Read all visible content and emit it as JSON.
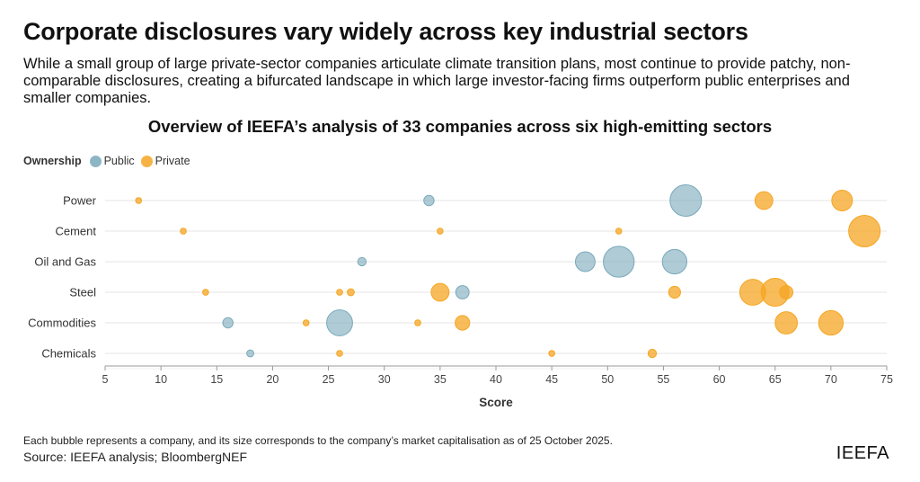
{
  "header": {
    "title": "Corporate disclosures vary widely across key industrial sectors",
    "subtitle": "While a small group of large private-sector companies articulate climate transition plans, most continue to provide patchy, non-comparable disclosures, creating a bifurcated landscape in which large investor-facing firms outperform public enterprises and smaller companies."
  },
  "legend": {
    "title": "Ownership",
    "items": [
      {
        "label": "Public",
        "color": "#79a9bb"
      },
      {
        "label": "Private",
        "color": "#f5a623"
      }
    ]
  },
  "footer": {
    "note": "Each bubble represents a company, and its size corresponds to the company’s market capitalisation as of 25 October 2025.",
    "source": "Source: IEEFA analysis; BloombergNEF",
    "logo": "IEEFA"
  },
  "chart_data": {
    "type": "scatter",
    "title": "Overview of IEEFA’s analysis of 33 companies across six high-emitting sectors",
    "xlabel": "Score",
    "ylabel": "",
    "xlim": [
      5,
      75
    ],
    "xticks": [
      5,
      10,
      15,
      20,
      25,
      30,
      35,
      40,
      45,
      50,
      55,
      60,
      65,
      70,
      75
    ],
    "categories": [
      "Power",
      "Cement",
      "Oil and Gas",
      "Steel",
      "Commodities",
      "Chemicals"
    ],
    "grid": "horizontal",
    "colors": {
      "Public": "#79a9bb",
      "Private": "#f5a623"
    },
    "points": [
      {
        "sector": "Power",
        "ownership": "Private",
        "score": 8,
        "size": 1
      },
      {
        "sector": "Power",
        "ownership": "Public",
        "score": 34,
        "size": 3
      },
      {
        "sector": "Power",
        "ownership": "Public",
        "score": 57,
        "size": 28
      },
      {
        "sector": "Power",
        "ownership": "Private",
        "score": 64,
        "size": 9
      },
      {
        "sector": "Power",
        "ownership": "Private",
        "score": 71,
        "size": 12
      },
      {
        "sector": "Cement",
        "ownership": "Private",
        "score": 12,
        "size": 1
      },
      {
        "sector": "Cement",
        "ownership": "Private",
        "score": 35,
        "size": 1
      },
      {
        "sector": "Cement",
        "ownership": "Private",
        "score": 51,
        "size": 1
      },
      {
        "sector": "Cement",
        "ownership": "Private",
        "score": 73,
        "size": 28
      },
      {
        "sector": "Oil and Gas",
        "ownership": "Public",
        "score": 28,
        "size": 2
      },
      {
        "sector": "Oil and Gas",
        "ownership": "Public",
        "score": 48,
        "size": 11
      },
      {
        "sector": "Oil and Gas",
        "ownership": "Public",
        "score": 51,
        "size": 27
      },
      {
        "sector": "Oil and Gas",
        "ownership": "Public",
        "score": 56,
        "size": 17
      },
      {
        "sector": "Steel",
        "ownership": "Private",
        "score": 14,
        "size": 1
      },
      {
        "sector": "Steel",
        "ownership": "Private",
        "score": 26,
        "size": 1
      },
      {
        "sector": "Steel",
        "ownership": "Private",
        "score": 27,
        "size": 1.4
      },
      {
        "sector": "Steel",
        "ownership": "Private",
        "score": 35,
        "size": 9
      },
      {
        "sector": "Steel",
        "ownership": "Public",
        "score": 37,
        "size": 5
      },
      {
        "sector": "Steel",
        "ownership": "Private",
        "score": 56,
        "size": 4
      },
      {
        "sector": "Steel",
        "ownership": "Private",
        "score": 63,
        "size": 19
      },
      {
        "sector": "Steel",
        "ownership": "Private",
        "score": 65,
        "size": 22
      },
      {
        "sector": "Steel",
        "ownership": "Private",
        "score": 66,
        "size": 5
      },
      {
        "sector": "Commodities",
        "ownership": "Public",
        "score": 16,
        "size": 3
      },
      {
        "sector": "Commodities",
        "ownership": "Private",
        "score": 23,
        "size": 1
      },
      {
        "sector": "Commodities",
        "ownership": "Public",
        "score": 26,
        "size": 19
      },
      {
        "sector": "Commodities",
        "ownership": "Private",
        "score": 33,
        "size": 1
      },
      {
        "sector": "Commodities",
        "ownership": "Private",
        "score": 37,
        "size": 6
      },
      {
        "sector": "Commodities",
        "ownership": "Private",
        "score": 66,
        "size": 14
      },
      {
        "sector": "Commodities",
        "ownership": "Private",
        "score": 70,
        "size": 17
      },
      {
        "sector": "Chemicals",
        "ownership": "Public",
        "score": 18,
        "size": 1.4
      },
      {
        "sector": "Chemicals",
        "ownership": "Private",
        "score": 26,
        "size": 1
      },
      {
        "sector": "Chemicals",
        "ownership": "Private",
        "score": 45,
        "size": 1
      },
      {
        "sector": "Chemicals",
        "ownership": "Private",
        "score": 54,
        "size": 2
      }
    ]
  }
}
